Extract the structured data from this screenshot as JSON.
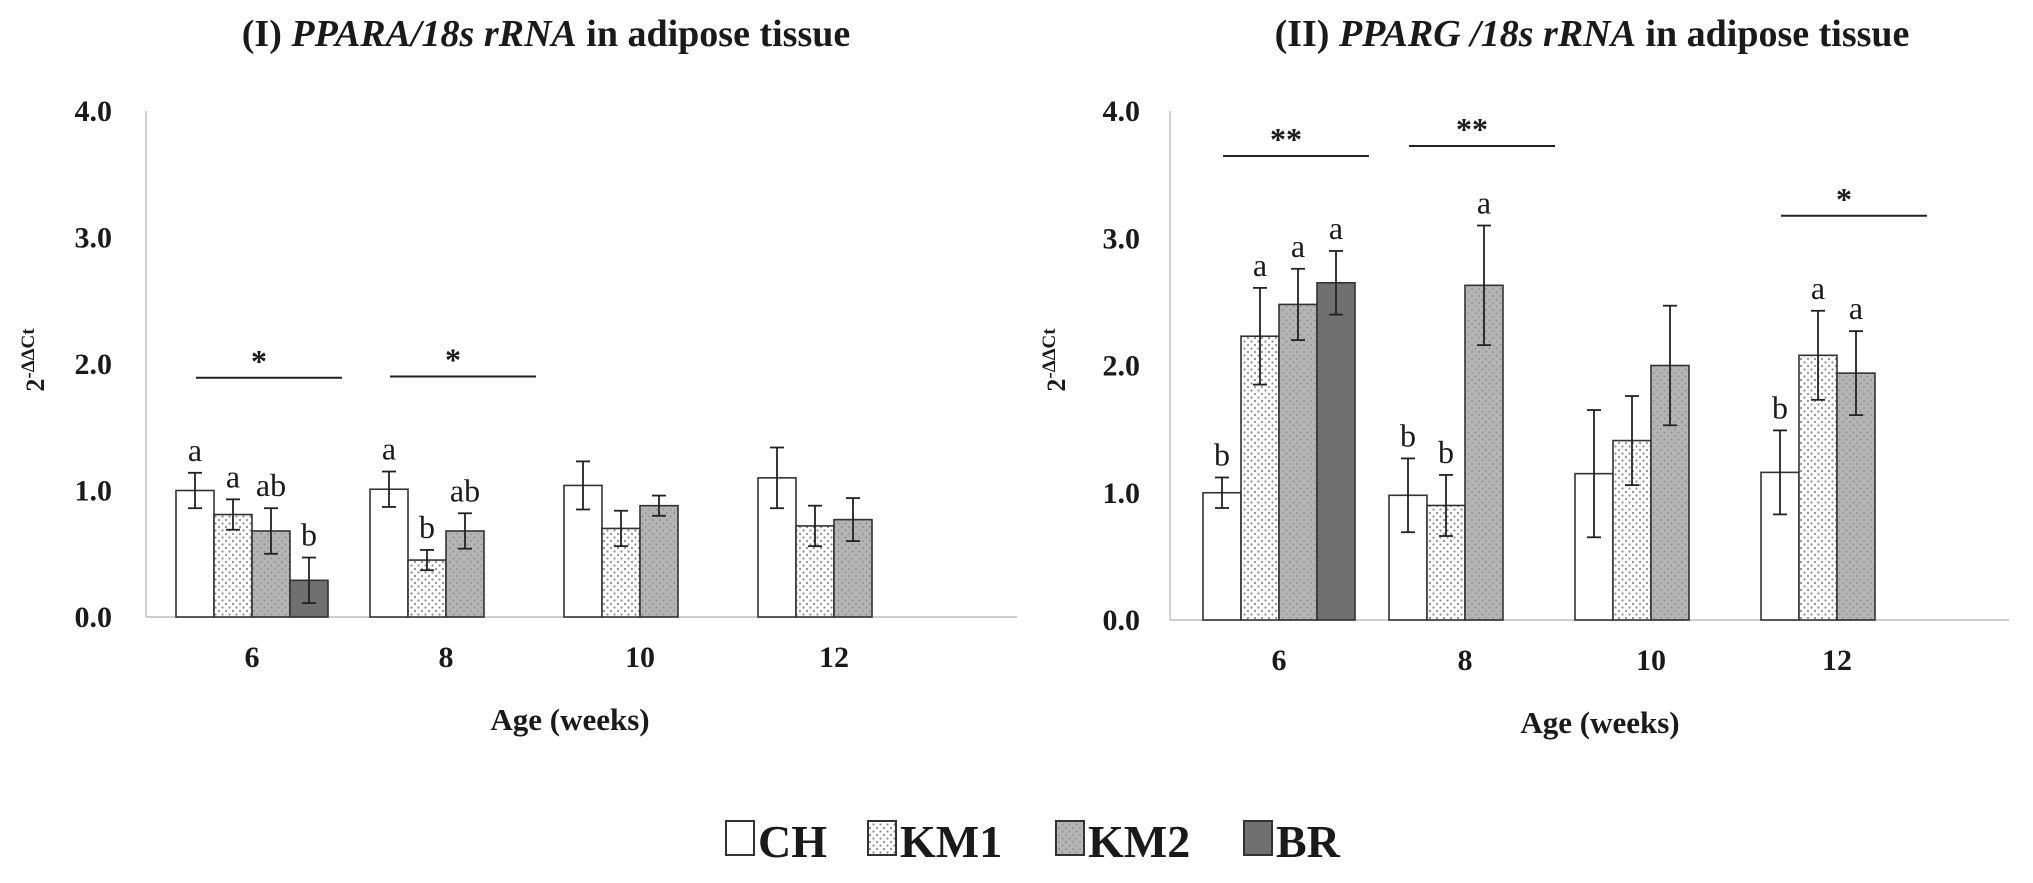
{
  "chart_data": [
    {
      "type": "bar",
      "title_prefix": "(I) ",
      "title_italic": "PPARA/18s rRNA",
      "title_suffix": " in adipose tissue",
      "xlabel": "Age (weeks)",
      "ylabel_base": "2",
      "ylabel_exp": "-ΔΔCt",
      "ylim": [
        0,
        4
      ],
      "yticks": [
        "0.0",
        "1.0",
        "2.0",
        "3.0",
        "4.0"
      ],
      "categories": [
        "6",
        "8",
        "10",
        "12"
      ],
      "series": [
        {
          "name": "CH",
          "values": [
            1.0,
            1.01,
            1.04,
            1.1
          ],
          "errors": [
            0.14,
            0.14,
            0.19,
            0.24
          ],
          "letters": [
            "a",
            "a",
            "",
            ""
          ]
        },
        {
          "name": "KM1",
          "values": [
            0.81,
            0.45,
            0.7,
            0.72
          ],
          "errors": [
            0.12,
            0.08,
            0.14,
            0.16
          ],
          "letters": [
            "a",
            "b",
            "",
            ""
          ]
        },
        {
          "name": "KM2",
          "values": [
            0.68,
            0.68,
            0.88,
            0.77
          ],
          "errors": [
            0.18,
            0.14,
            0.08,
            0.17
          ],
          "letters": [
            "ab",
            "ab",
            "",
            ""
          ]
        },
        {
          "name": "BR",
          "values": [
            0.29,
            null,
            null,
            null
          ],
          "errors": [
            0.18,
            null,
            null,
            null
          ],
          "letters": [
            "b",
            "",
            "",
            ""
          ]
        }
      ],
      "significance": [
        {
          "group": "6",
          "label": "*"
        },
        {
          "group": "8",
          "label": "*"
        }
      ]
    },
    {
      "type": "bar",
      "title_prefix": "(II) ",
      "title_italic": "PPARG /18s rRNA",
      "title_suffix": " in adipose tissue",
      "xlabel": "Age (weeks)",
      "ylabel_base": "2",
      "ylabel_exp": "-ΔΔCt",
      "ylim": [
        0,
        4
      ],
      "yticks": [
        "0.0",
        "1.0",
        "2.0",
        "3.0",
        "4.0"
      ],
      "categories": [
        "6",
        "8",
        "10",
        "12"
      ],
      "series": [
        {
          "name": "CH",
          "values": [
            1.0,
            0.98,
            1.15,
            1.16
          ],
          "errors": [
            0.12,
            0.29,
            0.5,
            0.33
          ],
          "letters": [
            "b",
            "b",
            "",
            "b"
          ]
        },
        {
          "name": "KM1",
          "values": [
            2.23,
            0.9,
            1.41,
            2.08
          ],
          "errors": [
            0.38,
            0.24,
            0.35,
            0.35
          ],
          "letters": [
            "a",
            "b",
            "",
            "a"
          ]
        },
        {
          "name": "KM2",
          "values": [
            2.48,
            2.63,
            2.0,
            1.94
          ],
          "errors": [
            0.28,
            0.47,
            0.47,
            0.33
          ],
          "letters": [
            "a",
            "a",
            "",
            "a"
          ]
        },
        {
          "name": "BR",
          "values": [
            2.65,
            null,
            null,
            null
          ],
          "errors": [
            0.25,
            null,
            null,
            null
          ],
          "letters": [
            "a",
            "",
            "",
            ""
          ]
        }
      ],
      "significance": [
        {
          "group": "6",
          "label": "**"
        },
        {
          "group": "8",
          "label": "**"
        },
        {
          "group": "12",
          "label": "*"
        }
      ]
    }
  ],
  "legend": {
    "items": [
      {
        "name": "CH",
        "fill": "#ffffff",
        "pattern": "none"
      },
      {
        "name": "KM1",
        "fill": "#ffffff",
        "pattern": "dots"
      },
      {
        "name": "KM2",
        "fill": "#b4b4b4",
        "pattern": "dots"
      },
      {
        "name": "BR",
        "fill": "#707070",
        "pattern": "none"
      }
    ]
  },
  "colors": {
    "text": "#1a1a1a",
    "axis": "#bfbfbf",
    "bar_edge": "#333333",
    "km1_dot": "#8c8c8c",
    "km2_dot": "#7a7a7a"
  }
}
